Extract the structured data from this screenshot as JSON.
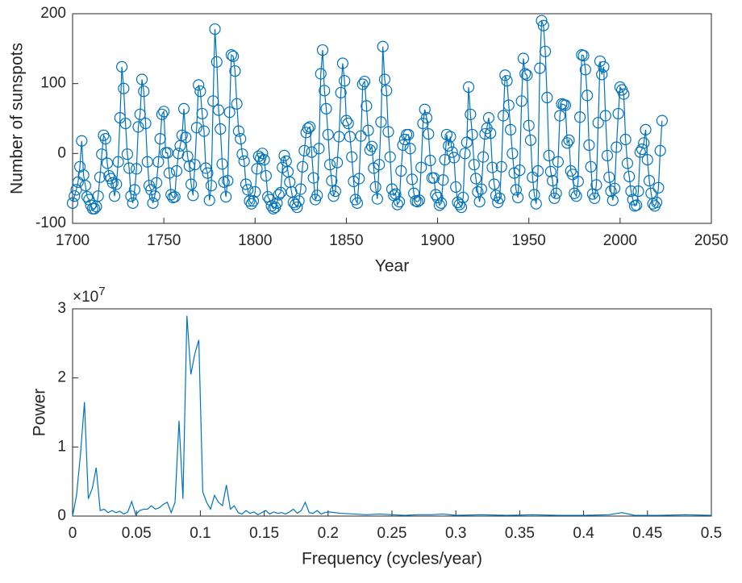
{
  "chart_data": [
    {
      "type": "line",
      "marker": "o",
      "color": "#0072BD",
      "xlabel": "Year",
      "ylabel": "Number of sunspots",
      "xlim": [
        1700,
        2050
      ],
      "xticks": [
        1700,
        1750,
        1800,
        1850,
        1900,
        1950,
        2000,
        2050
      ],
      "ylim": [
        -100,
        200
      ],
      "yticks": [
        -100,
        0,
        100,
        200
      ],
      "x": [
        1700,
        1701,
        1702,
        1703,
        1704,
        1705,
        1706,
        1707,
        1708,
        1709,
        1710,
        1711,
        1712,
        1713,
        1714,
        1715,
        1716,
        1717,
        1718,
        1719,
        1720,
        1721,
        1722,
        1723,
        1724,
        1725,
        1726,
        1727,
        1728,
        1729,
        1730,
        1731,
        1732,
        1733,
        1734,
        1735,
        1736,
        1737,
        1738,
        1739,
        1740,
        1741,
        1742,
        1743,
        1744,
        1745,
        1746,
        1747,
        1748,
        1749,
        1750,
        1751,
        1752,
        1753,
        1754,
        1755,
        1756,
        1757,
        1758,
        1759,
        1760,
        1761,
        1762,
        1763,
        1764,
        1765,
        1766,
        1767,
        1768,
        1769,
        1770,
        1771,
        1772,
        1773,
        1774,
        1775,
        1776,
        1777,
        1778,
        1779,
        1780,
        1781,
        1782,
        1783,
        1784,
        1785,
        1786,
        1787,
        1788,
        1789,
        1790,
        1791,
        1792,
        1793,
        1794,
        1795,
        1796,
        1797,
        1798,
        1799,
        1800,
        1801,
        1802,
        1803,
        1804,
        1805,
        1806,
        1807,
        1808,
        1809,
        1810,
        1811,
        1812,
        1813,
        1814,
        1815,
        1816,
        1817,
        1818,
        1819,
        1820,
        1821,
        1822,
        1823,
        1824,
        1825,
        1826,
        1827,
        1828,
        1829,
        1830,
        1831,
        1832,
        1833,
        1834,
        1835,
        1836,
        1837,
        1838,
        1839,
        1840,
        1841,
        1842,
        1843,
        1844,
        1845,
        1846,
        1847,
        1848,
        1849,
        1850,
        1851,
        1852,
        1853,
        1854,
        1855,
        1856,
        1857,
        1858,
        1859,
        1860,
        1861,
        1862,
        1863,
        1864,
        1865,
        1866,
        1867,
        1868,
        1869,
        1870,
        1871,
        1872,
        1873,
        1874,
        1875,
        1876,
        1877,
        1878,
        1879,
        1880,
        1881,
        1882,
        1883,
        1884,
        1885,
        1886,
        1887,
        1888,
        1889,
        1890,
        1891,
        1892,
        1893,
        1894,
        1895,
        1896,
        1897,
        1898,
        1899,
        1900,
        1901,
        1902,
        1903,
        1904,
        1905,
        1906,
        1907,
        1908,
        1909,
        1910,
        1911,
        1912,
        1913,
        1914,
        1915,
        1916,
        1917,
        1918,
        1919,
        1920,
        1921,
        1922,
        1923,
        1924,
        1925,
        1926,
        1927,
        1928,
        1929,
        1930,
        1931,
        1932,
        1933,
        1934,
        1935,
        1936,
        1937,
        1938,
        1939,
        1940,
        1941,
        1942,
        1943,
        1944,
        1945,
        1946,
        1947,
        1948,
        1949,
        1950,
        1951,
        1952,
        1953,
        1954,
        1955,
        1956,
        1957,
        1958,
        1959,
        1960,
        1961,
        1962,
        1963,
        1964,
        1965,
        1966,
        1967,
        1968,
        1969,
        1970,
        1971,
        1972,
        1973,
        1974,
        1975,
        1976,
        1977,
        1978,
        1979,
        1980,
        1981,
        1982,
        1983,
        1984,
        1985,
        1986,
        1987,
        1988,
        1989,
        1990,
        1991,
        1992,
        1993,
        1994,
        1995,
        1996,
        1997,
        1998,
        1999,
        2000,
        2001,
        2002,
        2003,
        2004,
        2005,
        2006,
        2007,
        2008,
        2009,
        2010,
        2011,
        2012,
        2013,
        2014,
        2015,
        2016,
        2017,
        2018,
        2019,
        2020,
        2021,
        2022,
        2023
      ],
      "values": [
        -71,
        -61,
        -52,
        -41,
        -19,
        18,
        -31,
        -46,
        -62,
        -66,
        -74,
        -79,
        -79,
        -76,
        -61,
        -34,
        -1,
        26,
        21,
        -14,
        -32,
        -36,
        -42,
        -61,
        -44,
        -12,
        51,
        124,
        93,
        43,
        -1,
        -21,
        -61,
        -71,
        -52,
        -22,
        38,
        56,
        106,
        89,
        43,
        -12,
        -46,
        -52,
        -71,
        -61,
        -42,
        -12,
        21,
        56,
        60,
        1,
        1,
        -28,
        -59,
        -63,
        -62,
        -25,
        0,
        11,
        26,
        64,
        23,
        -4,
        -18,
        -44,
        -60,
        -16,
        37,
        98,
        89,
        57,
        32,
        -21,
        -28,
        -67,
        -46,
        75,
        178,
        131,
        62,
        35,
        -15,
        -41,
        -62,
        -39,
        59,
        141,
        139,
        118,
        71,
        32,
        21,
        -1,
        -11,
        -44,
        -52,
        -68,
        -72,
        -68,
        -55,
        -22,
        -4,
        -7,
        0,
        -9,
        -32,
        -62,
        -66,
        -75,
        -79,
        -77,
        -71,
        -59,
        -56,
        -20,
        -3,
        -11,
        -26,
        -41,
        -55,
        -70,
        -73,
        -77,
        -68,
        -51,
        -19,
        4,
        30,
        36,
        38,
        2,
        -35,
        -66,
        -60,
        7,
        114,
        148,
        90,
        64,
        27,
        -16,
        -39,
        -61,
        -54,
        -13,
        24,
        87,
        129,
        104,
        47,
        43,
        24,
        -5,
        -40,
        -66,
        -71,
        -36,
        25,
        99,
        103,
        68,
        33,
        5,
        10,
        -21,
        -48,
        -65,
        -16,
        45,
        153,
        106,
        90,
        31,
        -5,
        -51,
        -60,
        -58,
        -73,
        -69,
        -25,
        12,
        20,
        27,
        27,
        7,
        -37,
        -57,
        -68,
        -69,
        -67,
        -20,
        43,
        63,
        51,
        28,
        -10,
        -35,
        -35,
        -59,
        -63,
        -74,
        -71,
        -38,
        -9,
        27,
        11,
        24,
        2,
        -6,
        -48,
        -70,
        -73,
        -77,
        -63,
        0,
        16,
        95,
        56,
        27,
        -16,
        -36,
        -55,
        -69,
        -51,
        -5,
        28,
        36,
        51,
        29,
        -20,
        -44,
        -60,
        -70,
        -64,
        -19,
        54,
        112,
        104,
        69,
        34,
        0,
        -28,
        -52,
        -63,
        -24,
        75,
        136,
        114,
        112,
        40,
        19,
        -34,
        -59,
        -72,
        -25,
        122,
        190,
        183,
        146,
        80,
        -3,
        -26,
        -39,
        -64,
        -57,
        -12,
        54,
        71,
        70,
        69,
        15,
        19,
        -25,
        -30,
        -57,
        -61,
        -40,
        52,
        141,
        140,
        120,
        83,
        12,
        -19,
        -58,
        -64,
        -45,
        44,
        132,
        113,
        124,
        54,
        -3,
        -34,
        -54,
        -67,
        -50,
        9,
        57,
        95,
        91,
        85,
        20,
        -14,
        -33,
        -54,
        -66,
        -75,
        -74,
        -54,
        2,
        6,
        15,
        34,
        -9,
        -39,
        -57,
        -72,
        -75,
        -70,
        -49,
        4,
        47
      ]
    },
    {
      "type": "line",
      "color": "#0072BD",
      "xlabel": "Frequency (cycles/year)",
      "ylabel": "Power",
      "y_multiplier_base": "×10",
      "y_multiplier_exponent": "7",
      "xlim": [
        0,
        0.5
      ],
      "xticks": [
        0,
        0.05,
        0.1,
        0.15,
        0.2,
        0.25,
        0.3,
        0.35,
        0.4,
        0.45,
        0.5
      ],
      "ylim": [
        0,
        3
      ],
      "yticks": [
        0,
        1,
        2,
        3
      ],
      "x": [
        0,
        0.0031,
        0.0062,
        0.0093,
        0.0123,
        0.0154,
        0.0185,
        0.0216,
        0.0247,
        0.0278,
        0.0309,
        0.034,
        0.037,
        0.0401,
        0.0432,
        0.0463,
        0.0494,
        0.0525,
        0.0556,
        0.0586,
        0.0617,
        0.0648,
        0.0679,
        0.071,
        0.0741,
        0.0772,
        0.0802,
        0.0833,
        0.0864,
        0.0895,
        0.0926,
        0.0957,
        0.0988,
        0.1019,
        0.1049,
        0.108,
        0.1111,
        0.1142,
        0.1173,
        0.1204,
        0.1235,
        0.1265,
        0.1296,
        0.1327,
        0.1358,
        0.1389,
        0.142,
        0.1451,
        0.1481,
        0.1512,
        0.1543,
        0.1574,
        0.1605,
        0.1636,
        0.1667,
        0.1698,
        0.1728,
        0.1759,
        0.179,
        0.1821,
        0.1852,
        0.1883,
        0.1914,
        0.1944,
        0.1975,
        0.2006,
        0.21,
        0.22,
        0.23,
        0.24,
        0.25,
        0.26,
        0.27,
        0.28,
        0.29,
        0.3,
        0.32,
        0.34,
        0.36,
        0.38,
        0.4,
        0.42,
        0.43,
        0.44,
        0.46,
        0.48,
        0.5
      ],
      "values": [
        0,
        0.3,
        0.9,
        1.65,
        0.25,
        0.4,
        0.7,
        0.08,
        0.1,
        0.05,
        0.08,
        0.05,
        0.07,
        0.03,
        0.06,
        0.21,
        0.02,
        0.08,
        0.1,
        0.1,
        0.15,
        0.1,
        0.12,
        0.17,
        0.2,
        0.05,
        0.2,
        1.38,
        0.25,
        2.9,
        2.05,
        2.35,
        2.55,
        0.35,
        0.2,
        0.1,
        0.3,
        0.2,
        0.15,
        0.45,
        0.1,
        0.15,
        0.05,
        0.03,
        0.08,
        0.04,
        0.06,
        0.02,
        0.05,
        0.08,
        0.03,
        0.06,
        0.04,
        0.05,
        0.03,
        0.06,
        0.1,
        0.04,
        0.08,
        0.2,
        0.05,
        0.04,
        0.08,
        0.03,
        0.05,
        0.06,
        0.04,
        0.03,
        0.02,
        0.03,
        0.02,
        0.01,
        0.02,
        0.02,
        0.03,
        0.01,
        0.02,
        0.01,
        0.02,
        0.01,
        0.01,
        0.02,
        0.05,
        0.01,
        0.01,
        0.02,
        0.01
      ]
    }
  ]
}
